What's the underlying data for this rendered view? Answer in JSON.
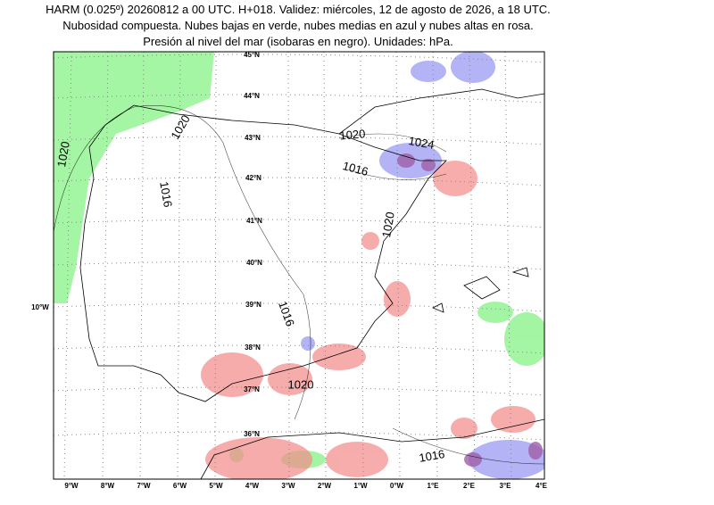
{
  "header": {
    "lines": [
      "HARM (0.025º) 20260812 a 00 UTC. H+018. Validez: miércoles, 12 de agosto de 2026, a 18 UTC.",
      "Nubosidad compuesta. Nubes bajas en verde, nubes medias en azul y nubes altas en rosa.",
      "Presión al nivel del mar (isobaras en negro). Unidades: hPa."
    ]
  },
  "map": {
    "latitude_labels": [
      "45°N",
      "44°N",
      "43°N",
      "42°N",
      "41°N",
      "40°N",
      "39°N",
      "38°N",
      "37°N",
      "36°N"
    ],
    "longitude_labels": [
      "9°W",
      "8°W",
      "7°W",
      "6°W",
      "5°W",
      "4°W",
      "3°W",
      "2°W",
      "1°W",
      "0°W",
      "1°E",
      "2°E",
      "3°E",
      "4°E"
    ],
    "side_label": "10°W",
    "isobar_labels": [
      "1020",
      "1020",
      "1016",
      "1020",
      "1024",
      "1016",
      "1020",
      "1016",
      "1020",
      "1016"
    ]
  }
}
